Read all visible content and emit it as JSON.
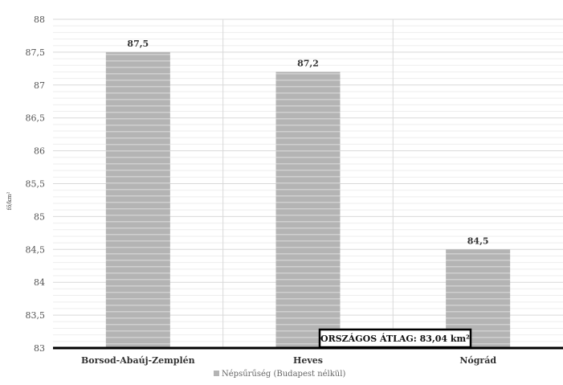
{
  "chart_data": {
    "type": "bar",
    "categories": [
      "Borsod-Abaúj-Zemplén",
      "Heves",
      "Nógrád"
    ],
    "series": [
      {
        "name": "Népsűrűség (Budapest nélkül)",
        "values": [
          87.5,
          87.2,
          84.5
        ]
      }
    ],
    "data_labels": [
      "87,5",
      "87,2",
      "84,5"
    ],
    "ylabel": "fő/km²",
    "xlabel": "",
    "ylim": [
      83,
      88
    ],
    "ytick_step": 0.5,
    "yticks": [
      "83",
      "83,5",
      "84",
      "84,5",
      "85",
      "85,5",
      "86",
      "86,5",
      "87",
      "87,5",
      "88"
    ],
    "grid": true,
    "legend_position": "bottom",
    "annotation": "ORSZÁGOS ÁTLAG: 83,04 km²",
    "colors": {
      "bar": "#b4b4b4",
      "bar_stripe": "#cfcfcf",
      "grid_major": "#d9d9d9",
      "grid_minor": "#eeeeee",
      "baseline": "#000000"
    }
  }
}
